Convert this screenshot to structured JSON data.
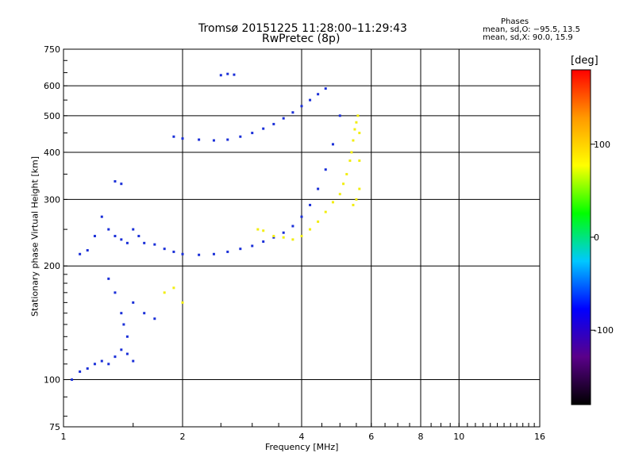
{
  "chart_data": {
    "type": "scatter",
    "title": "Tromsø 20151225 11:28:00–11:29:43",
    "subtitle": "RwPretec (8p)",
    "xlabel": "Frequency [MHz]",
    "ylabel": "Stationary phase Virtual Height [km]",
    "x_scale": "log",
    "y_scale": "log",
    "xlim": [
      1,
      16
    ],
    "ylim": [
      75,
      750
    ],
    "x_ticks": [
      1,
      2,
      4,
      6,
      8,
      10,
      16
    ],
    "y_ticks": [
      75,
      100,
      200,
      300,
      400,
      500,
      600,
      750
    ],
    "grid": true,
    "phases": {
      "heading": "Phases",
      "o_mode": "mean, sd,O: −95.5, 13.5",
      "x_mode": "mean, sd,X:  90.0, 15.9"
    },
    "colorbar": {
      "label": "[deg]",
      "ticks": [
        100,
        0,
        -100
      ],
      "range": [
        -180,
        180
      ],
      "colors": [
        "#000000",
        "#5a008a",
        "#0000ff",
        "#00c8ff",
        "#00ff00",
        "#ffff00",
        "#ff9900",
        "#ff0000"
      ]
    },
    "series": [
      {
        "mode": "O",
        "phase": -100,
        "color": "#1a2fd8",
        "points": [
          [
            1.05,
            100
          ],
          [
            1.1,
            105
          ],
          [
            1.15,
            107
          ],
          [
            1.2,
            110
          ],
          [
            1.25,
            112
          ],
          [
            1.3,
            110
          ],
          [
            1.35,
            115
          ],
          [
            1.4,
            120
          ],
          [
            1.45,
            117
          ],
          [
            1.5,
            112
          ],
          [
            1.1,
            215
          ],
          [
            1.15,
            220
          ],
          [
            1.2,
            240
          ],
          [
            1.25,
            270
          ],
          [
            1.3,
            250
          ],
          [
            1.35,
            240
          ],
          [
            1.4,
            235
          ],
          [
            1.45,
            230
          ],
          [
            1.5,
            250
          ],
          [
            1.55,
            240
          ],
          [
            1.6,
            230
          ],
          [
            1.7,
            228
          ],
          [
            1.8,
            222
          ],
          [
            1.9,
            218
          ],
          [
            2.0,
            215
          ],
          [
            2.2,
            214
          ],
          [
            2.4,
            215
          ],
          [
            2.6,
            218
          ],
          [
            2.8,
            222
          ],
          [
            3.0,
            226
          ],
          [
            3.2,
            232
          ],
          [
            3.4,
            238
          ],
          [
            3.6,
            245
          ],
          [
            3.8,
            255
          ],
          [
            4.0,
            270
          ],
          [
            4.2,
            290
          ],
          [
            4.4,
            320
          ],
          [
            4.6,
            360
          ],
          [
            4.8,
            420
          ],
          [
            5.0,
            500
          ],
          [
            1.9,
            440
          ],
          [
            2.0,
            435
          ],
          [
            2.2,
            432
          ],
          [
            2.4,
            430
          ],
          [
            2.6,
            432
          ],
          [
            2.8,
            440
          ],
          [
            3.0,
            450
          ],
          [
            3.2,
            462
          ],
          [
            3.4,
            475
          ],
          [
            3.6,
            492
          ],
          [
            3.8,
            510
          ],
          [
            4.0,
            530
          ],
          [
            4.2,
            550
          ],
          [
            4.4,
            570
          ],
          [
            4.6,
            590
          ],
          [
            2.5,
            640
          ],
          [
            2.6,
            645
          ],
          [
            2.7,
            642
          ],
          [
            1.35,
            335
          ],
          [
            1.4,
            330
          ],
          [
            1.3,
            185
          ],
          [
            1.35,
            170
          ],
          [
            1.4,
            150
          ],
          [
            1.42,
            140
          ],
          [
            1.45,
            130
          ],
          [
            1.5,
            160
          ],
          [
            1.6,
            150
          ],
          [
            1.7,
            145
          ]
        ]
      },
      {
        "mode": "X",
        "phase": 100,
        "color": "#f2ee10",
        "points": [
          [
            3.8,
            235
          ],
          [
            4.0,
            240
          ],
          [
            4.2,
            250
          ],
          [
            4.4,
            262
          ],
          [
            4.6,
            278
          ],
          [
            4.8,
            295
          ],
          [
            5.0,
            310
          ],
          [
            5.1,
            330
          ],
          [
            5.2,
            350
          ],
          [
            5.3,
            380
          ],
          [
            5.35,
            400
          ],
          [
            5.4,
            430
          ],
          [
            5.45,
            460
          ],
          [
            5.5,
            480
          ],
          [
            5.55,
            500
          ],
          [
            5.6,
            450
          ],
          [
            5.6,
            380
          ],
          [
            5.6,
            320
          ],
          [
            5.5,
            300
          ],
          [
            5.4,
            290
          ],
          [
            3.1,
            250
          ],
          [
            3.2,
            248
          ],
          [
            3.4,
            240
          ],
          [
            3.6,
            238
          ],
          [
            1.9,
            175
          ],
          [
            1.8,
            170
          ],
          [
            2.0,
            160
          ]
        ]
      }
    ]
  }
}
